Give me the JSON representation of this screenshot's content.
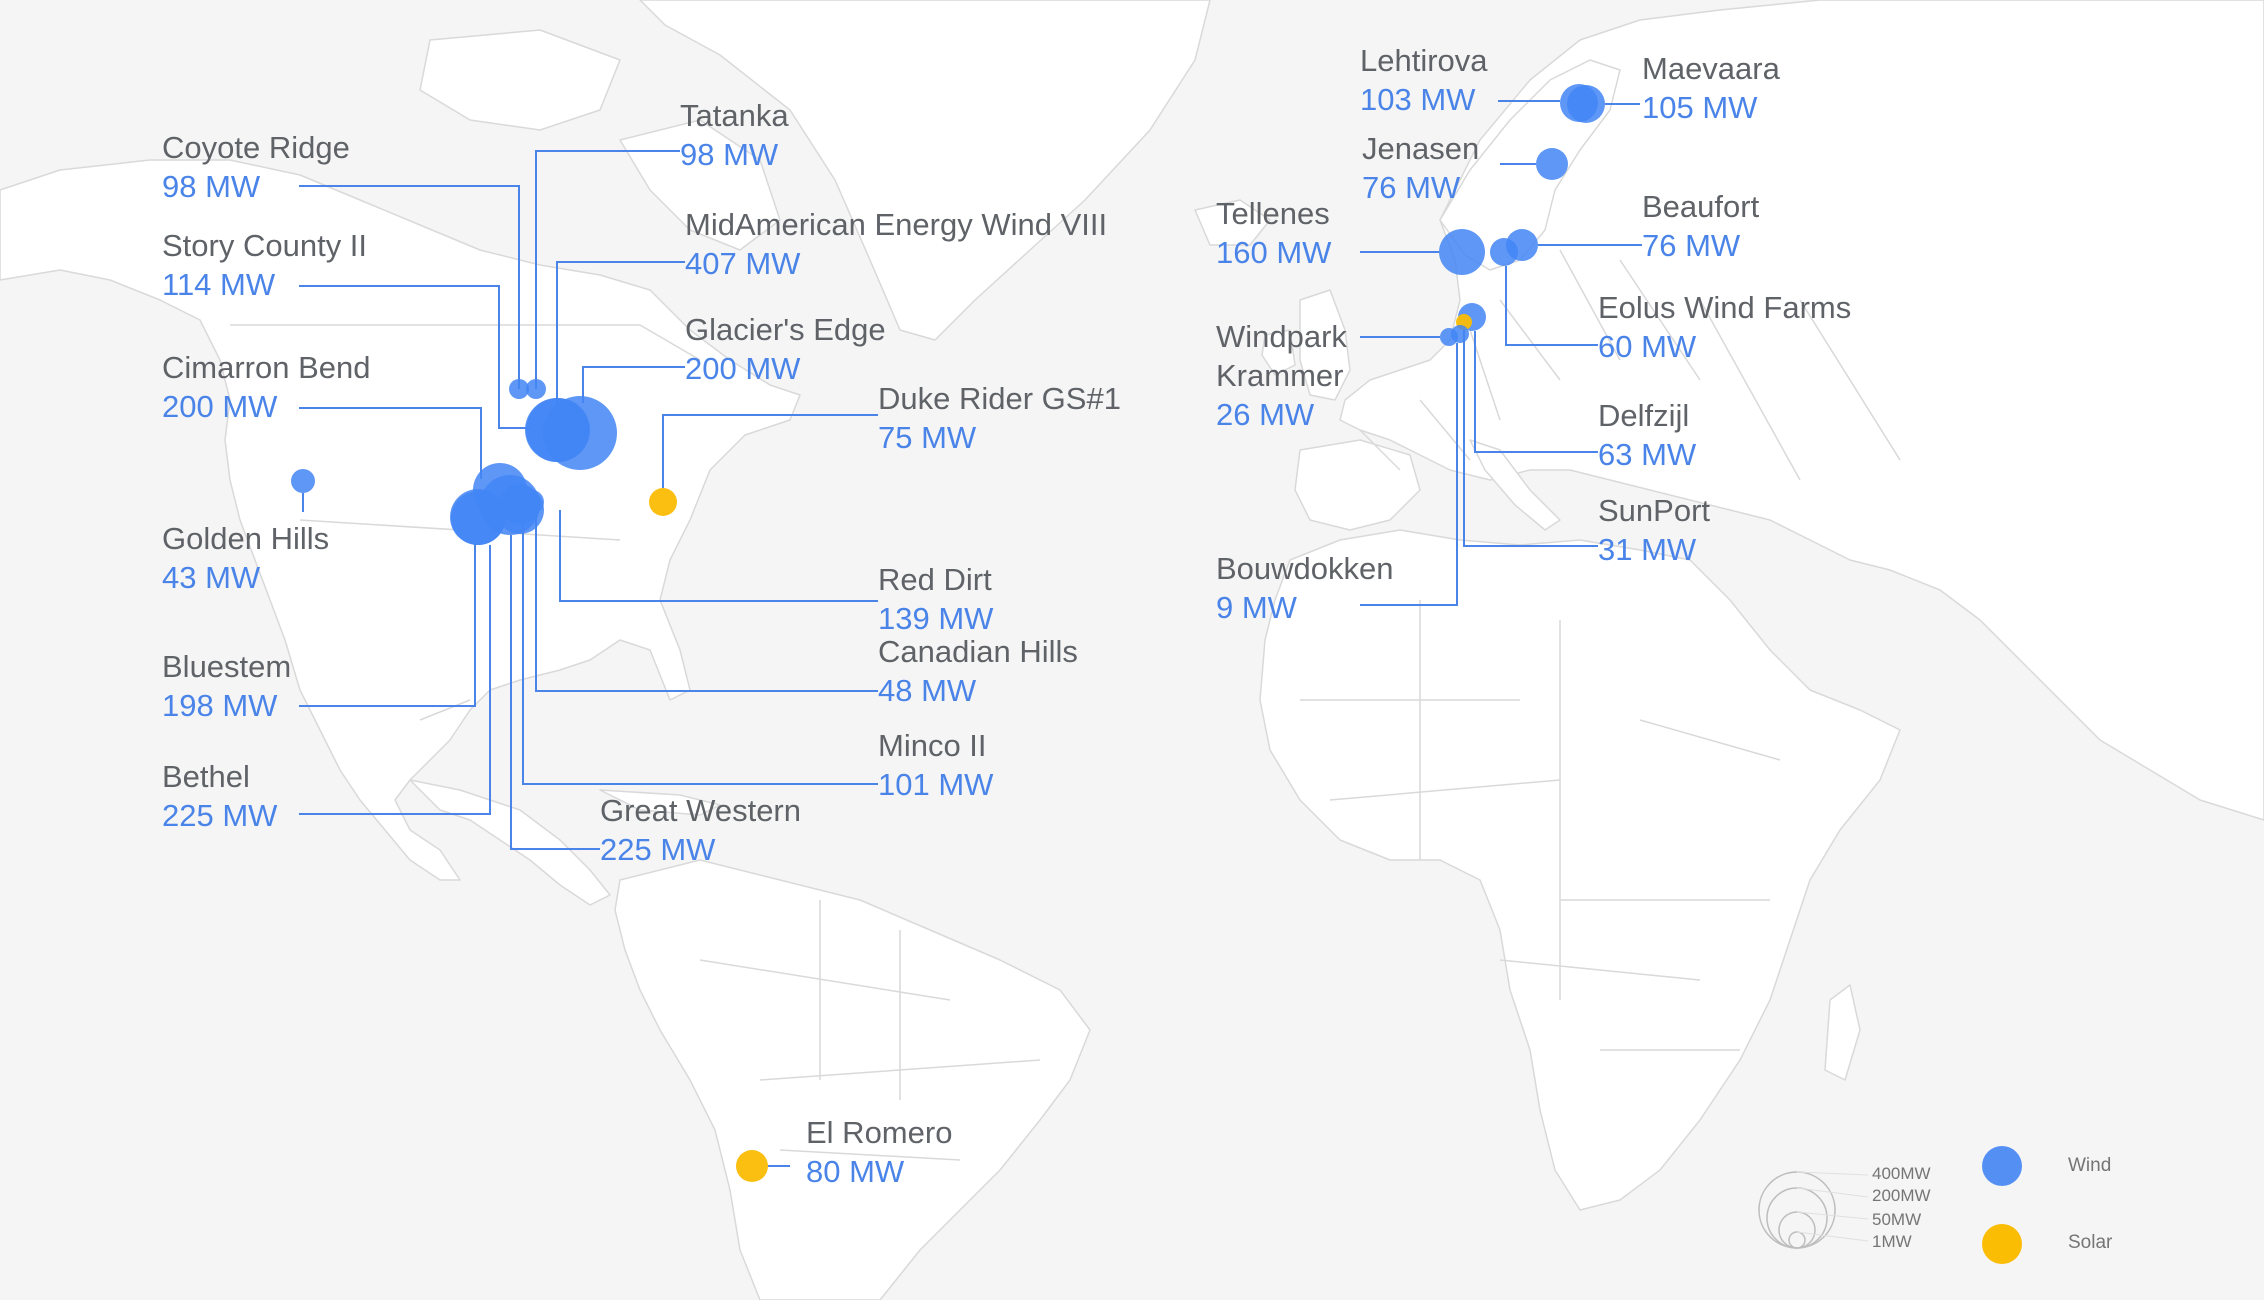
{
  "colors": {
    "wind": "#4285f4",
    "solar": "#fbbc04",
    "leader": "#4a84e8",
    "land": "#ffffff",
    "sea": "#f5f5f5",
    "border": "#d9d9d9"
  },
  "sites": [
    {
      "name": "Coyote Ridge",
      "mw": "98 MW",
      "type": "wind"
    },
    {
      "name": "Tatanka",
      "mw": "98 MW",
      "type": "wind"
    },
    {
      "name": "Story County II",
      "mw": "114 MW",
      "type": "wind"
    },
    {
      "name": "MidAmerican Energy Wind VIII",
      "mw": "407 MW",
      "type": "wind"
    },
    {
      "name": "Glacier's Edge",
      "mw": "200 MW",
      "type": "wind"
    },
    {
      "name": "Cimarron Bend",
      "mw": "200 MW",
      "type": "wind"
    },
    {
      "name": "Duke Rider GS#1",
      "mw": "75 MW",
      "type": "solar"
    },
    {
      "name": "Golden Hills",
      "mw": "43 MW",
      "type": "wind"
    },
    {
      "name": "Red Dirt",
      "mw": "139 MW",
      "type": "wind"
    },
    {
      "name": "Bluestem",
      "mw": "198 MW",
      "type": "wind"
    },
    {
      "name": "Canadian Hills",
      "mw": "48 MW",
      "type": "wind"
    },
    {
      "name": "Minco II",
      "mw": "101 MW",
      "type": "wind"
    },
    {
      "name": "Bethel",
      "mw": "225 MW",
      "type": "wind"
    },
    {
      "name": "Great Western",
      "mw": "225 MW",
      "type": "wind"
    },
    {
      "name": "El Romero",
      "mw": "80 MW",
      "type": "solar"
    },
    {
      "name": "Lehtirova",
      "mw": "103 MW",
      "type": "wind"
    },
    {
      "name": "Maevaara",
      "mw": "105 MW",
      "type": "wind"
    },
    {
      "name": "Jenasen",
      "mw": "76 MW",
      "type": "wind"
    },
    {
      "name": "Tellenes",
      "mw": "160 MW",
      "type": "wind"
    },
    {
      "name": "Beaufort",
      "mw": "76 MW",
      "type": "wind"
    },
    {
      "name": "Eolus Wind Farms",
      "mw": "60 MW",
      "type": "wind"
    },
    {
      "name": "Windpark\nKrammer",
      "mw": "26 MW",
      "type": "wind"
    },
    {
      "name": "Delfzijl",
      "mw": "63 MW",
      "type": "wind"
    },
    {
      "name": "SunPort",
      "mw": "31 MW",
      "type": "solar"
    },
    {
      "name": "Bouwdokken",
      "mw": "9 MW",
      "type": "wind"
    }
  ],
  "legend": {
    "sizes": [
      "400MW",
      "200MW",
      "50MW",
      "1MW"
    ],
    "types": [
      {
        "label": "Wind",
        "type": "wind"
      },
      {
        "label": "Solar",
        "type": "solar"
      }
    ]
  }
}
